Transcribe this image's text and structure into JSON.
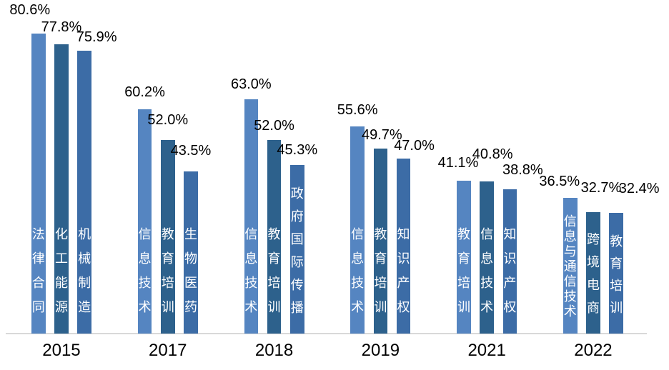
{
  "chart_data": {
    "type": "bar",
    "categories": [
      "2015",
      "2017",
      "2018",
      "2019",
      "2021",
      "2022"
    ],
    "value_format": "percent",
    "ylim": [
      0,
      90
    ],
    "grid": false,
    "legend": false,
    "colors": {
      "bar_position_1": "#5585C1",
      "bar_position_2": "#2D618C",
      "bar_position_3": "#3C6CA6",
      "axis_line": "#D9D9D9",
      "value_label": "#000000",
      "bar_inner_text": "#FFFFFF"
    },
    "groups": [
      {
        "year": "2015",
        "bars": [
          {
            "category": "法律合同",
            "value": 80.6,
            "display": "80.6%"
          },
          {
            "category": "化工能源",
            "value": 77.8,
            "display": "77.8%"
          },
          {
            "category": "机械制造",
            "value": 75.9,
            "display": "75.9%"
          }
        ]
      },
      {
        "year": "2017",
        "bars": [
          {
            "category": "信息技术",
            "value": 60.2,
            "display": "60.2%"
          },
          {
            "category": "教育培训",
            "value": 52.0,
            "display": "52.0%"
          },
          {
            "category": "生物医药",
            "value": 43.5,
            "display": "43.5%"
          }
        ]
      },
      {
        "year": "2018",
        "bars": [
          {
            "category": "信息技术",
            "value": 63.0,
            "display": "63.0%"
          },
          {
            "category": "教育培训",
            "value": 52.0,
            "display": "52.0%"
          },
          {
            "category": "政府国际传播",
            "value": 45.3,
            "display": "45.3%"
          }
        ]
      },
      {
        "year": "2019",
        "bars": [
          {
            "category": "信息技术",
            "value": 55.6,
            "display": "55.6%"
          },
          {
            "category": "教育培训",
            "value": 49.7,
            "display": "49.7%"
          },
          {
            "category": "知识产权",
            "value": 47.0,
            "display": "47.0%"
          }
        ]
      },
      {
        "year": "2021",
        "bars": [
          {
            "category": "教育培训",
            "value": 41.1,
            "display": "41.1%"
          },
          {
            "category": "信息技术",
            "value": 40.8,
            "display": "40.8%"
          },
          {
            "category": "知识产权",
            "value": 38.8,
            "display": "38.8%"
          }
        ]
      },
      {
        "year": "2022",
        "bars": [
          {
            "category": "信息与通信技术",
            "value": 36.5,
            "display": "36.5%"
          },
          {
            "category": "跨境电商",
            "value": 32.7,
            "display": "32.7%"
          },
          {
            "category": "教育培训",
            "value": 32.4,
            "display": "32.4%"
          }
        ]
      }
    ]
  }
}
